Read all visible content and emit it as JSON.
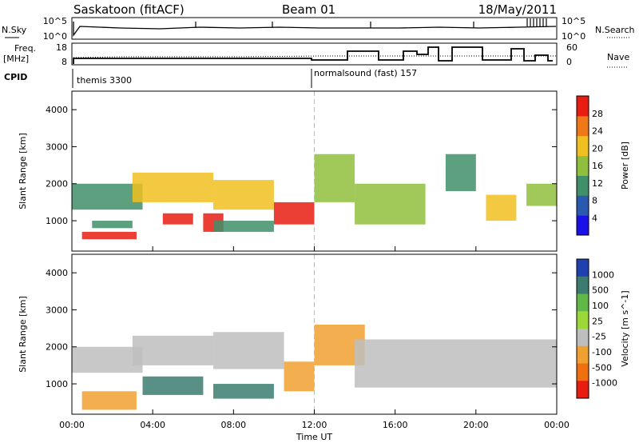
{
  "header": {
    "radar_title": "Saskatoon (fitACF)",
    "beam": "Beam 01",
    "date": "18/May/2011"
  },
  "strip_panels": {
    "nsky_label": "N.Sky",
    "nsearch_label": "N.Search",
    "nsky_ticks": [
      "10^5",
      "10^0"
    ],
    "nsearch_ticks": [
      "10^5",
      "10^0"
    ],
    "freq_label": "Freq.",
    "freq_unit": "[MHz]",
    "freq_ticks": [
      "18",
      "8"
    ],
    "nave_label": "Nave",
    "nave_ticks": [
      "60",
      "0"
    ],
    "cpid_label": "CPID",
    "cpid_segments": [
      {
        "text": "themis 3300",
        "start_hour": 0
      },
      {
        "text": "normalsound (fast) 157",
        "start_hour": 12
      }
    ]
  },
  "colors": {
    "axis": "#000000",
    "mode_divider": "#bbbbbb",
    "ground_scatter": "#bebebe"
  },
  "chart_data": [
    {
      "type": "heatmap",
      "parameter": "power",
      "xlabel": "",
      "ylabel": "Slant Range [km]",
      "colorbar_label": "Power [dB]",
      "xlim": [
        0,
        24
      ],
      "ylim": [
        180,
        4500
      ],
      "y_ticks": [
        "1000",
        "2000",
        "3000",
        "4000"
      ],
      "colorbar_ticks": [
        "4",
        "8",
        "12",
        "16",
        "20",
        "24",
        "28"
      ],
      "colorbar_colors": [
        "#1a10e8",
        "#2a5ab0",
        "#3f8f6a",
        "#8fbf3c",
        "#f0c020",
        "#f07818",
        "#e81c10"
      ],
      "regions": [
        {
          "start_hour": 0.0,
          "end_hour": 3.5,
          "range_min": 1300,
          "range_max": 2000,
          "value_db": 12
        },
        {
          "start_hour": 0.5,
          "end_hour": 3.2,
          "range_min": 500,
          "range_max": 700,
          "value_db": 26
        },
        {
          "start_hour": 1.0,
          "end_hour": 3.0,
          "range_min": 800,
          "range_max": 1000,
          "value_db": 10
        },
        {
          "start_hour": 3.0,
          "end_hour": 7.0,
          "range_min": 1500,
          "range_max": 2300,
          "value_db": 18
        },
        {
          "start_hour": 4.5,
          "end_hour": 6.0,
          "range_min": 900,
          "range_max": 1200,
          "value_db": 26
        },
        {
          "start_hour": 6.5,
          "end_hour": 7.5,
          "range_min": 700,
          "range_max": 1200,
          "value_db": 26
        },
        {
          "start_hour": 7.0,
          "end_hour": 10.0,
          "range_min": 1300,
          "range_max": 2100,
          "value_db": 18
        },
        {
          "start_hour": 7.0,
          "end_hour": 10.0,
          "range_min": 700,
          "range_max": 1000,
          "value_db": 10
        },
        {
          "start_hour": 10.0,
          "end_hour": 12.0,
          "range_min": 900,
          "range_max": 1500,
          "value_db": 26
        },
        {
          "start_hour": 12.0,
          "end_hour": 14.0,
          "range_min": 1500,
          "range_max": 2800,
          "value_db": 14
        },
        {
          "start_hour": 14.0,
          "end_hour": 17.5,
          "range_min": 900,
          "range_max": 2000,
          "value_db": 14
        },
        {
          "start_hour": 18.5,
          "end_hour": 20.0,
          "range_min": 1800,
          "range_max": 2800,
          "value_db": 10
        },
        {
          "start_hour": 20.5,
          "end_hour": 22.0,
          "range_min": 1000,
          "range_max": 1700,
          "value_db": 20
        },
        {
          "start_hour": 22.5,
          "end_hour": 24.0,
          "range_min": 1400,
          "range_max": 2000,
          "value_db": 14
        }
      ]
    },
    {
      "type": "heatmap",
      "parameter": "velocity",
      "xlabel": "Time UT",
      "ylabel": "Slant Range [km]",
      "colorbar_label": "Velocity [m s^-1]",
      "xlim": [
        0,
        24
      ],
      "ylim": [
        180,
        4500
      ],
      "x_ticks": [
        "00:00",
        "04:00",
        "08:00",
        "12:00",
        "16:00",
        "20:00",
        "00:00"
      ],
      "y_ticks": [
        "1000",
        "2000",
        "3000",
        "4000"
      ],
      "colorbar_ticks": [
        "1000",
        "500",
        "100",
        "25",
        "-25",
        "-100",
        "-500",
        "-1000"
      ],
      "colorbar_colors": [
        "#2040b0",
        "#3c7c70",
        "#60b848",
        "#9cd838",
        "#bebebe",
        "#f0a030",
        "#f07010",
        "#e81c10"
      ],
      "regions": [
        {
          "start_hour": 0.0,
          "end_hour": 3.5,
          "range_min": 1300,
          "range_max": 2000,
          "value": 0,
          "ground_scatter": true
        },
        {
          "start_hour": 0.5,
          "end_hour": 3.2,
          "range_min": 300,
          "range_max": 800,
          "value": -150
        },
        {
          "start_hour": 3.0,
          "end_hour": 7.0,
          "range_min": 1500,
          "range_max": 2300,
          "value": 0,
          "ground_scatter": true
        },
        {
          "start_hour": 3.5,
          "end_hour": 6.5,
          "range_min": 700,
          "range_max": 1200,
          "value": 300
        },
        {
          "start_hour": 7.0,
          "end_hour": 10.5,
          "range_min": 1400,
          "range_max": 2400,
          "value": 0,
          "ground_scatter": true
        },
        {
          "start_hour": 7.0,
          "end_hour": 10.0,
          "range_min": 600,
          "range_max": 1000,
          "value": 150
        },
        {
          "start_hour": 10.5,
          "end_hour": 12.0,
          "range_min": 800,
          "range_max": 1600,
          "value": -300
        },
        {
          "start_hour": 12.0,
          "end_hour": 14.5,
          "range_min": 1500,
          "range_max": 2600,
          "value": -200
        },
        {
          "start_hour": 14.0,
          "end_hour": 24.0,
          "range_min": 900,
          "range_max": 2200,
          "value": 0,
          "ground_scatter": true
        }
      ]
    }
  ]
}
